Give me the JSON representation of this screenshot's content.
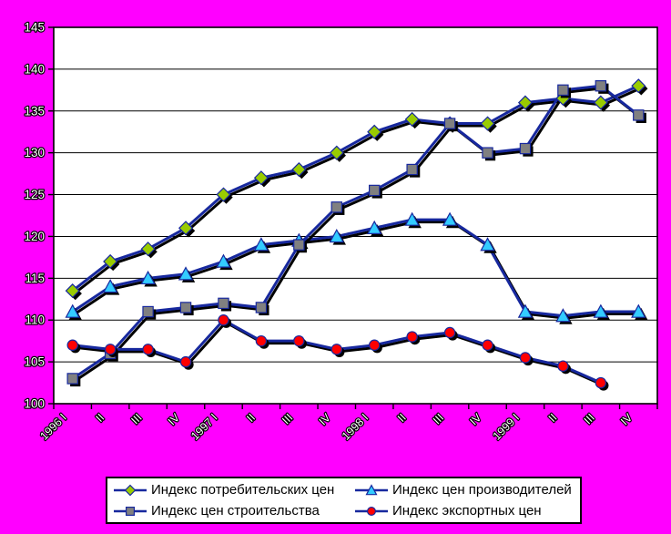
{
  "chart_data": {
    "type": "line",
    "title": "",
    "categories": [
      "1996 I",
      "II",
      "III",
      "IV",
      "1997 I",
      "II",
      "III",
      "IV",
      "1998 I",
      "II",
      "III",
      "IV",
      "1999 I",
      "II",
      "III",
      "IV"
    ],
    "y_axis": {
      "min": 100,
      "max": 145,
      "step": 5,
      "tick_labels": [
        "100",
        "105",
        "110",
        "115",
        "120",
        "125",
        "130",
        "135",
        "140",
        "145"
      ]
    },
    "grid": true,
    "legend_position": "bottom",
    "line_color": "#17289E",
    "series": [
      {
        "name": "Индекс потребительских цен",
        "marker": "diamond",
        "color": "#99CC00",
        "values": [
          113.5,
          117,
          118.5,
          121,
          125,
          127,
          128,
          130,
          132.5,
          134,
          133.5,
          133.5,
          136,
          136.5,
          136,
          138
        ]
      },
      {
        "name": "Индекс цен производителей",
        "marker": "triangle",
        "color": "#33CCFF",
        "values": [
          111,
          114,
          115,
          115.5,
          117,
          119,
          119.5,
          120,
          121,
          122,
          122,
          119,
          111,
          110.5,
          111,
          111
        ]
      },
      {
        "name": "Индекс цен строительства",
        "marker": "square",
        "color": "#808080",
        "values": [
          103,
          106,
          111,
          111.5,
          112,
          111.5,
          119,
          123.5,
          125.5,
          128,
          133.5,
          130,
          130.5,
          137.5,
          138,
          134.5
        ]
      },
      {
        "name": "Индекс экспортных цен",
        "marker": "circle",
        "color": "#FF0000",
        "values": [
          107,
          106.5,
          106.5,
          105,
          110,
          107.5,
          107.5,
          106.5,
          107,
          108,
          108.5,
          107,
          105.5,
          104.5,
          102.5,
          null
        ]
      }
    ]
  },
  "colors": {
    "background": "#FF00FF",
    "plot_background": "#FFFFFF",
    "gridline": "#000000",
    "axis": "#000000",
    "tick_text_fill": "#FFFFFF",
    "tick_text_outline": "#000000",
    "shadow": "#000000"
  }
}
